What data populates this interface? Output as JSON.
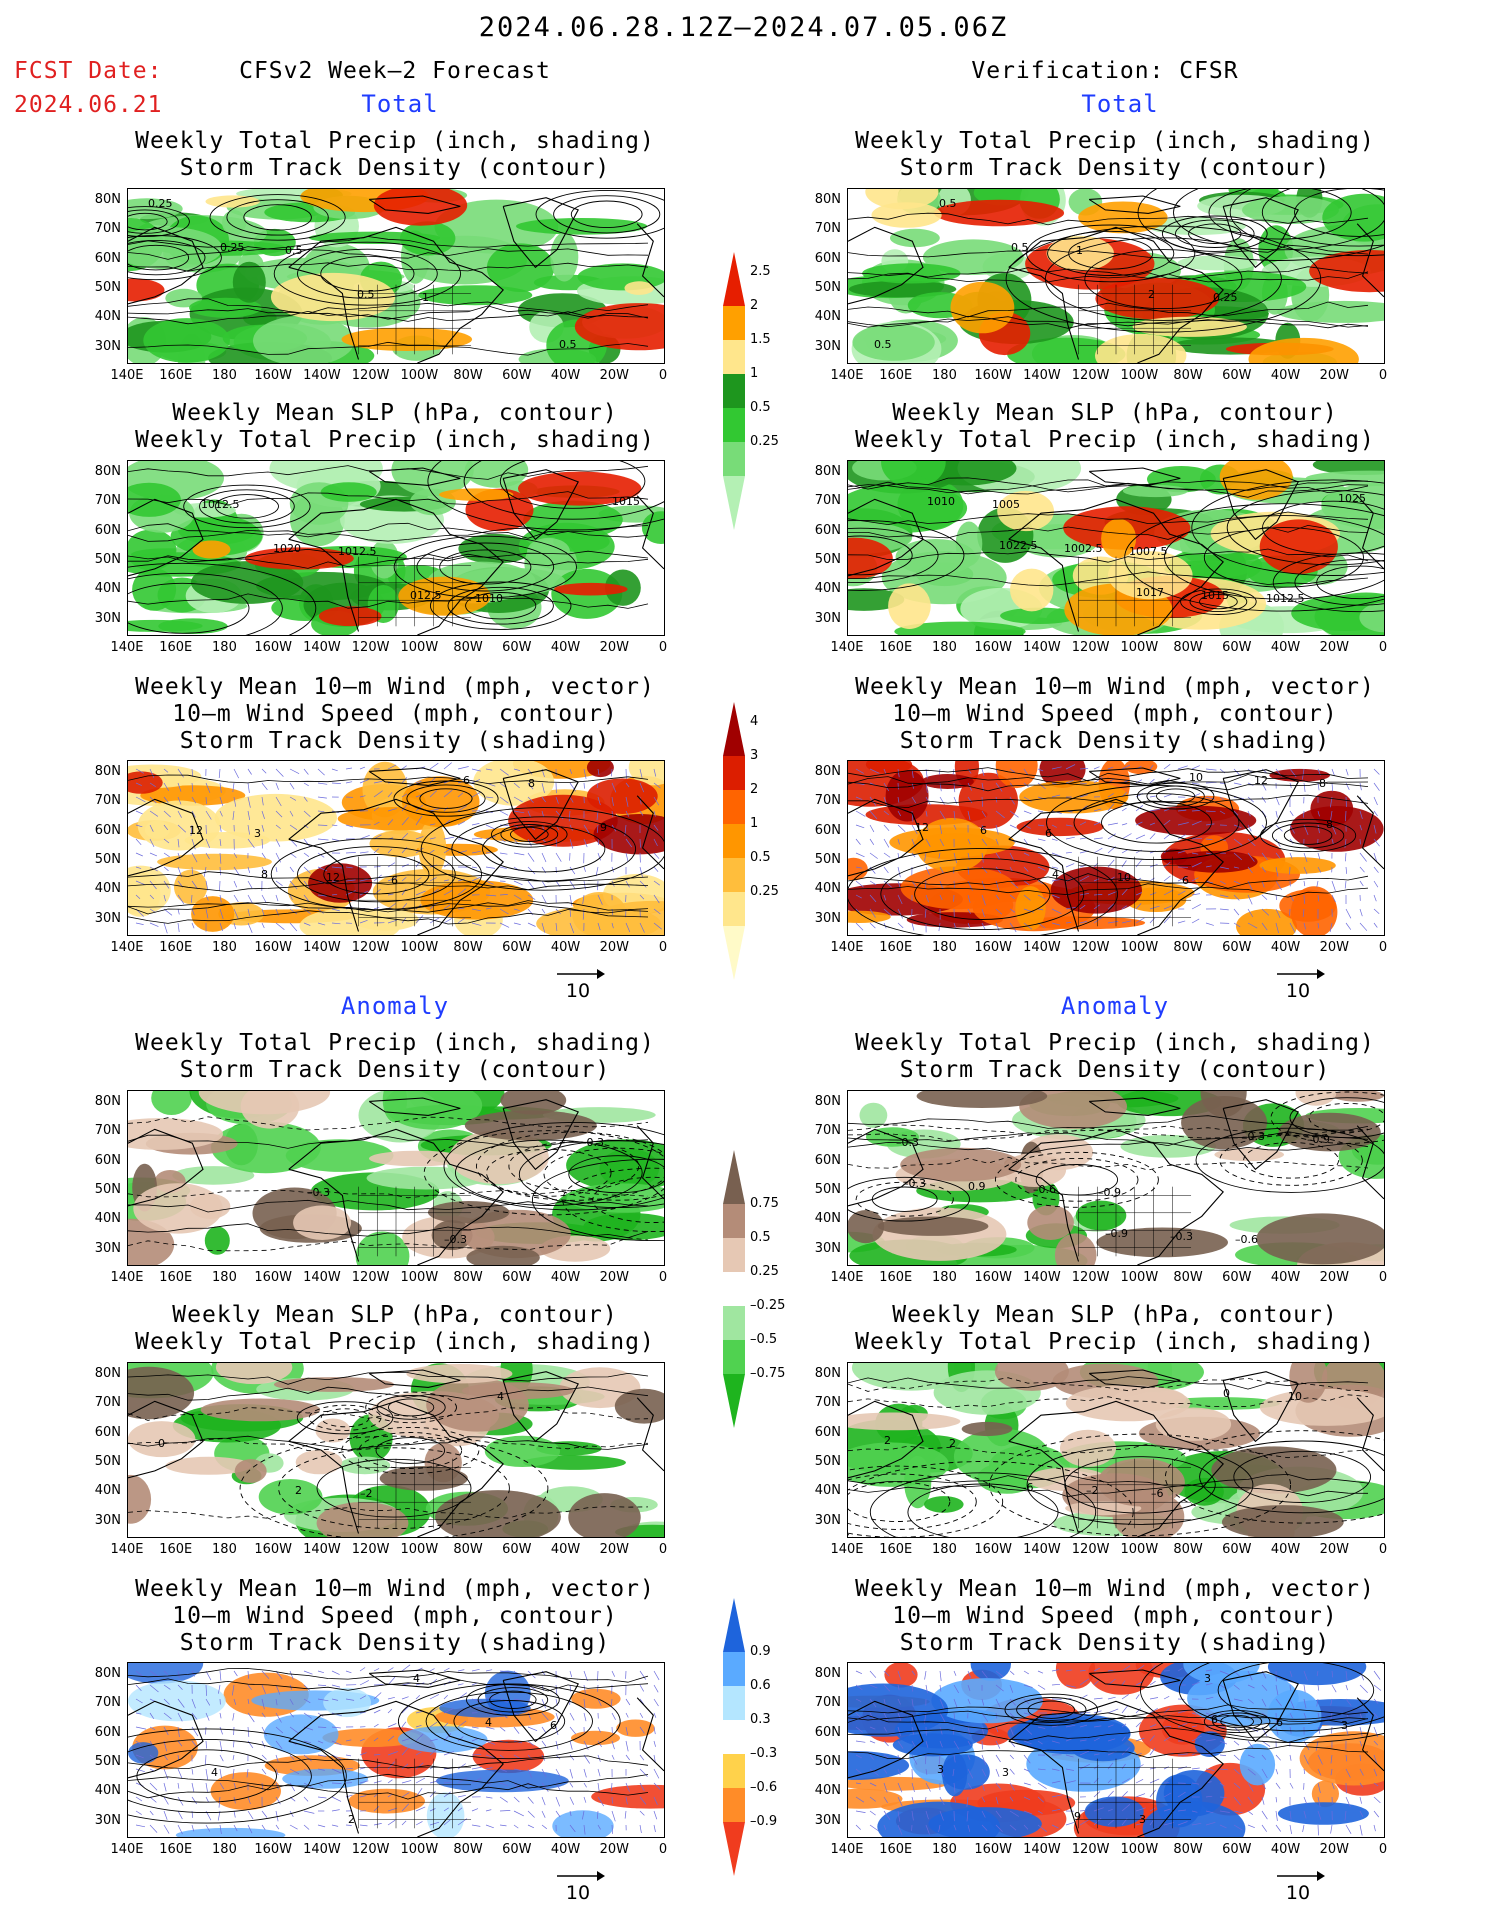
{
  "header": {
    "date_range": "2024.06.28.12Z–2024.07.05.06Z",
    "fcst_label": "FCST Date:",
    "fcst_date": "2024.06.21",
    "left_title": "CFSv2 Week–2 Forecast",
    "right_title": "Verification: CFSR"
  },
  "sections": {
    "total": "Total",
    "anomaly": "Anomaly"
  },
  "panel_titles": {
    "precip_storm": [
      "Weekly Total Precip (inch, shading)",
      "Storm Track Density (contour)"
    ],
    "slp_precip": [
      "Weekly Mean SLP (hPa, contour)",
      "Weekly Total Precip (inch, shading)"
    ],
    "wind_storm": [
      "Weekly Mean 10–m Wind (mph, vector)",
      "10–m Wind Speed (mph, contour)",
      "Storm Track Density (shading)"
    ]
  },
  "axes": {
    "lat_ticks": [
      "80N",
      "70N",
      "60N",
      "50N",
      "40N",
      "30N"
    ],
    "lon_ticks": [
      "140E",
      "160E",
      "180",
      "160W",
      "140W",
      "120W",
      "100W",
      "80W",
      "60W",
      "40W",
      "20W",
      "0"
    ]
  },
  "vector_ref": "10",
  "colorbars": {
    "precip_total": {
      "labels": [
        "0.25",
        "0.5",
        "1",
        "1.5",
        "2",
        "2.5"
      ],
      "colors": [
        "#b4f0b4",
        "#78dc78",
        "#32c832",
        "#1e961e",
        "#ffe68c",
        "#ffa000",
        "#e61e00"
      ]
    },
    "storm_total": {
      "labels": [
        "0.25",
        "0.5",
        "1",
        "2",
        "3",
        "4"
      ],
      "colors": [
        "#fffac8",
        "#ffe68c",
        "#ffbe3c",
        "#ff9600",
        "#ff6400",
        "#dc1e00",
        "#a00000"
      ]
    },
    "precip_anom": {
      "labels": [
        "0.75",
        "0.5",
        "0.25",
        "–0.25",
        "–0.5",
        "–0.75"
      ],
      "colors": [
        "#1eb41e",
        "#50d250",
        "#a0e6a0",
        "#ffffff",
        "#e6c8b4",
        "#b48c78",
        "#786050"
      ]
    },
    "storm_anom": {
      "labels": [
        "0.9",
        "0.6",
        "0.3",
        "–0.3",
        "–0.6",
        "–0.9"
      ],
      "colors": [
        "#f03c1e",
        "#ff8c28",
        "#ffd24b",
        "#ffffff",
        "#b4e6ff",
        "#5aaaff",
        "#1e64dc"
      ]
    }
  },
  "contour_labels": {
    "p1l": [
      "0.25",
      "0.5",
      "1",
      "0.5",
      "0.25",
      "0.5"
    ],
    "p2l": [
      "1012.5",
      "1012.5",
      "1010",
      "1015",
      "1020",
      "012.5"
    ],
    "p3l": [
      "3",
      "6",
      "8",
      "12",
      "12",
      "6",
      "9",
      "8"
    ],
    "p1r": [
      "0.5",
      "1",
      "0.25",
      "0.5",
      "0.5",
      "2"
    ],
    "p2r": [
      "1005",
      "1007.5",
      "1012.5",
      "1010",
      "1002.5",
      "1015",
      "1025",
      "1022.5",
      "1017"
    ],
    "p3r": [
      "6",
      "6",
      "8",
      "6",
      "10",
      "12",
      "12",
      "4",
      "10",
      "8"
    ],
    "a1l": [
      "–0.3",
      "–0.3",
      "–0.3"
    ],
    "a2l": [
      "–2",
      "4",
      "0",
      "2"
    ],
    "a3l": [
      "4",
      "6",
      "4",
      "2",
      "4"
    ],
    "a1r": [
      "–0.9",
      "–0.6",
      "–0.3",
      "–0.6",
      "–0.3",
      "–0.9",
      "0.9",
      "–0.9",
      "–0.3",
      "–0.3"
    ],
    "a2r": [
      "–6",
      "10",
      "2",
      "–2",
      "0",
      "2",
      "–6"
    ],
    "a3r": [
      "3",
      "3",
      "3",
      "3",
      "6",
      "3",
      "9",
      "6"
    ]
  }
}
